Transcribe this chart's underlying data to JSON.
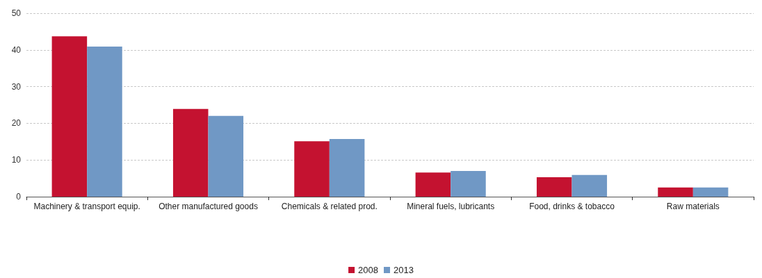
{
  "chart_data": {
    "type": "bar",
    "categories": [
      "Machinery & transport equip.",
      "Other manufactured goods",
      "Chemicals & related prod.",
      "Mineral fuels, lubricants",
      "Food, drinks & tobacco",
      "Raw materials"
    ],
    "series": [
      {
        "name": "2008",
        "color": "#c41230",
        "values": [
          43.7,
          23.9,
          15.1,
          6.6,
          5.3,
          2.5
        ]
      },
      {
        "name": "2013",
        "color": "#7098c5",
        "values": [
          40.9,
          22.0,
          15.7,
          7.0,
          5.9,
          2.5
        ]
      }
    ],
    "ylim": [
      0,
      50
    ],
    "yticks": [
      0,
      10,
      20,
      30,
      40,
      50
    ],
    "grid": "y",
    "legend": "bottom"
  }
}
